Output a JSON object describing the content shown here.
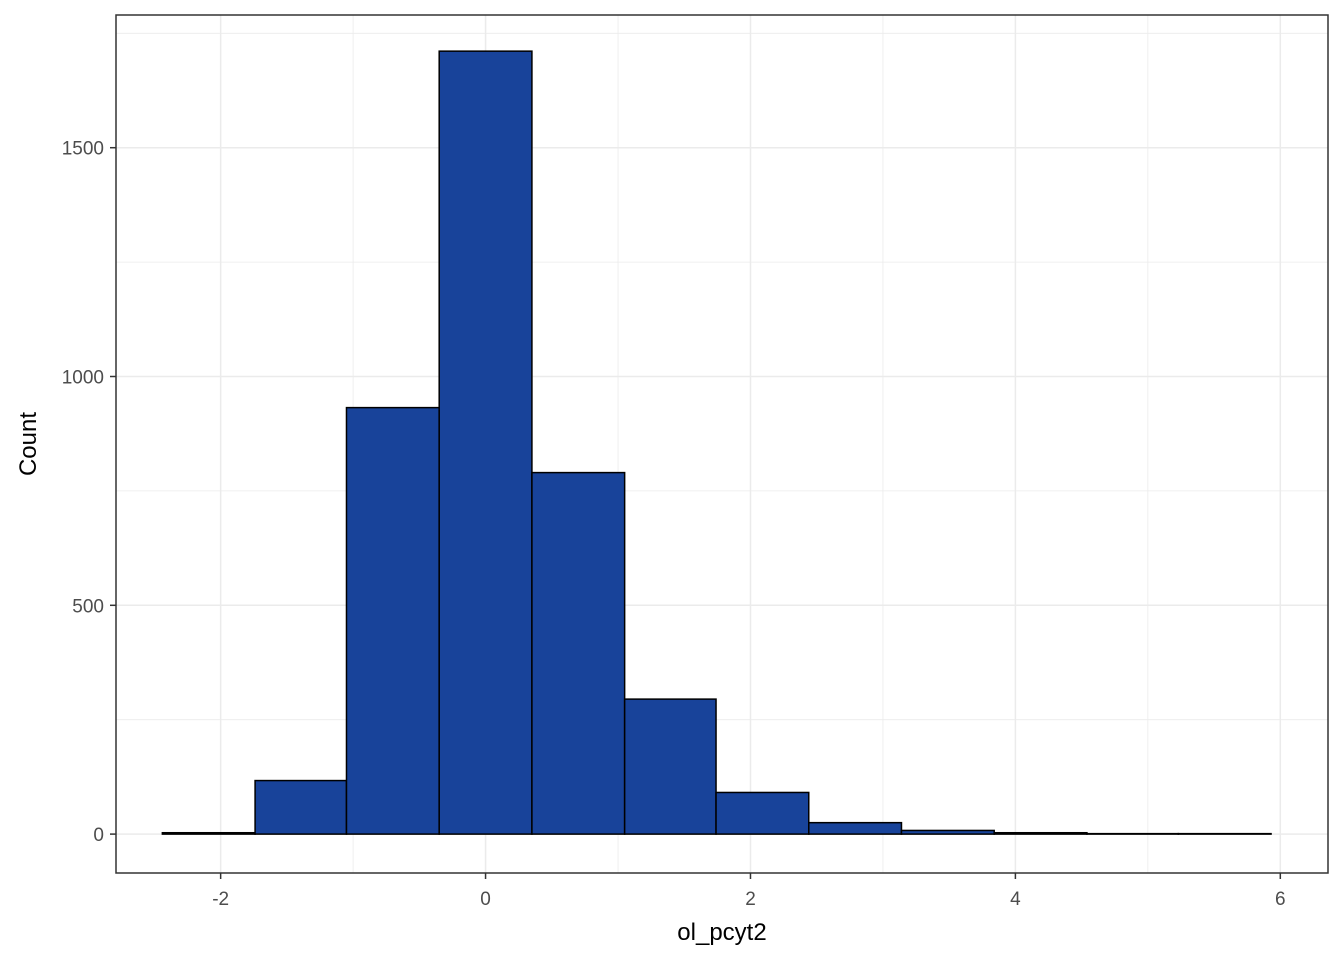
{
  "chart_data": {
    "type": "bar",
    "subtype": "histogram",
    "title": "",
    "xlabel": "ol_pcyt2",
    "ylabel": "Count",
    "xlim": [
      -2.79,
      6.36
    ],
    "ylim": [
      -85,
      1790
    ],
    "x_ticks": [
      -2,
      0,
      2,
      4,
      6
    ],
    "y_ticks": [
      0,
      500,
      1000,
      1500
    ],
    "x_tick_labels": [
      "-2",
      "0",
      "2",
      "4",
      "6"
    ],
    "y_tick_labels": [
      "0",
      "500",
      "1000",
      "1500"
    ],
    "grid": true,
    "legend": "none",
    "bins": [
      {
        "x0": -2.44,
        "x1": -1.74,
        "count": 3
      },
      {
        "x0": -1.74,
        "x1": -1.05,
        "count": 117
      },
      {
        "x0": -1.05,
        "x1": -0.35,
        "count": 932
      },
      {
        "x0": -0.35,
        "x1": 0.35,
        "count": 1711
      },
      {
        "x0": 0.35,
        "x1": 1.05,
        "count": 790
      },
      {
        "x0": 1.05,
        "x1": 1.74,
        "count": 295
      },
      {
        "x0": 1.74,
        "x1": 2.44,
        "count": 91
      },
      {
        "x0": 2.44,
        "x1": 3.14,
        "count": 25
      },
      {
        "x0": 3.14,
        "x1": 3.84,
        "count": 8
      },
      {
        "x0": 3.84,
        "x1": 4.54,
        "count": 3
      },
      {
        "x0": 4.54,
        "x1": 5.23,
        "count": 1
      },
      {
        "x0": 5.23,
        "x1": 5.93,
        "count": 1
      }
    ],
    "colors": {
      "bar_fill": "#18439A",
      "bar_stroke": "#000000",
      "grid": "#EBEBEB",
      "panel_border": "#333333",
      "tick_label": "#4D4D4D"
    }
  }
}
